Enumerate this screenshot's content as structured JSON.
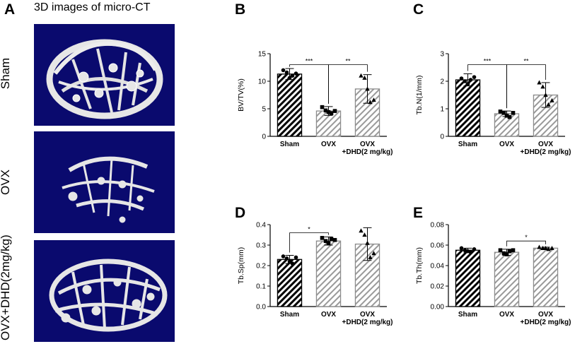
{
  "panel_a": {
    "letter": "A",
    "title": "3D images of micro-CT",
    "rows": [
      {
        "label": "Sham"
      },
      {
        "label": "OVX"
      },
      {
        "label": "OVX+DHD(2mg/kg)"
      }
    ]
  },
  "colors": {
    "ct_background": "#0a0a6e",
    "bone": "#e8e8e8",
    "bar_dark": "#000000",
    "bar_light": "#9a9a9a"
  },
  "chart_data": [
    {
      "letter": "B",
      "type": "bar",
      "categories": [
        "Sham",
        "OVX",
        "OVX\n+DHD(2 mg/kg)"
      ],
      "values": [
        11.3,
        4.6,
        8.6
      ],
      "errors": [
        1.0,
        0.8,
        2.6
      ],
      "points": [
        [
          12.0,
          11.6,
          10.6,
          11.0,
          11.4
        ],
        [
          5.3,
          4.7,
          4.4,
          4.2,
          4.6
        ],
        [
          11.0,
          10.6,
          8.6,
          6.2,
          6.6
        ]
      ],
      "markers": [
        "circle",
        "square",
        "triangle"
      ],
      "ylabel": "BV/TV(%)",
      "ylim": [
        0,
        15
      ],
      "yticks": [
        "0",
        "5",
        "10",
        "15"
      ],
      "ytick_values": [
        0,
        5,
        10,
        15
      ],
      "sig": [
        {
          "from": 0,
          "to": 1,
          "label": "***",
          "level": 13.0
        },
        {
          "from": 1,
          "to": 2,
          "label": "**",
          "level": 13.0
        }
      ]
    },
    {
      "letter": "C",
      "type": "bar",
      "categories": [
        "Sham",
        "OVX",
        "OVX\n+DHD(2 mg/kg)"
      ],
      "values": [
        2.05,
        0.82,
        1.5
      ],
      "errors": [
        0.22,
        0.1,
        0.45
      ],
      "points": [
        [
          2.1,
          2.0,
          1.9,
          2.05,
          2.15
        ],
        [
          0.9,
          0.85,
          0.75,
          0.7,
          0.85
        ],
        [
          1.95,
          1.8,
          1.5,
          1.15,
          1.3
        ]
      ],
      "markers": [
        "circle",
        "square",
        "triangle"
      ],
      "ylabel": "Tb.N(1/mm)",
      "ylim": [
        0,
        3
      ],
      "yticks": [
        "0",
        "1",
        "2",
        "3"
      ],
      "ytick_values": [
        0,
        1,
        2,
        3
      ],
      "sig": [
        {
          "from": 0,
          "to": 1,
          "label": "***",
          "level": 2.6
        },
        {
          "from": 1,
          "to": 2,
          "label": "**",
          "level": 2.6
        }
      ]
    },
    {
      "letter": "D",
      "type": "bar",
      "categories": [
        "Sham",
        "OVX",
        "OVX\n+DHD(2 mg/kg)"
      ],
      "values": [
        0.23,
        0.32,
        0.305
      ],
      "errors": [
        0.02,
        0.02,
        0.08
      ],
      "points": [
        [
          0.245,
          0.235,
          0.22,
          0.21,
          0.24
        ],
        [
          0.335,
          0.32,
          0.31,
          0.33,
          0.325
        ],
        [
          0.37,
          0.35,
          0.31,
          0.24,
          0.26
        ]
      ],
      "markers": [
        "circle",
        "square",
        "triangle"
      ],
      "ylabel": "Tb.Sp(mm)",
      "ylim": [
        0,
        0.4
      ],
      "yticks": [
        "0.0",
        "0.1",
        "0.2",
        "0.3",
        "0.4"
      ],
      "ytick_values": [
        0,
        0.1,
        0.2,
        0.3,
        0.4
      ],
      "sig": [
        {
          "from": 0,
          "to": 1,
          "label": "*",
          "level": 0.36
        }
      ]
    },
    {
      "letter": "E",
      "type": "bar",
      "categories": [
        "Sham",
        "OVX",
        "OVX\n+DHD(2 mg/kg)"
      ],
      "values": [
        0.055,
        0.053,
        0.057
      ],
      "errors": [
        0.002,
        0.003,
        0.001
      ],
      "points": [
        [
          0.057,
          0.055,
          0.054,
          0.053,
          0.056
        ],
        [
          0.055,
          0.052,
          0.051,
          0.054,
          0.055
        ],
        [
          0.058,
          0.057,
          0.057,
          0.056,
          0.057
        ]
      ],
      "markers": [
        "circle",
        "square",
        "triangle"
      ],
      "ylabel": "Tb.Th(mm)",
      "ylim": [
        0,
        0.08
      ],
      "yticks": [
        "0.00",
        "0.02",
        "0.04",
        "0.06",
        "0.08"
      ],
      "ytick_values": [
        0,
        0.02,
        0.04,
        0.06,
        0.08
      ],
      "sig": [
        {
          "from": 1,
          "to": 2,
          "label": "*",
          "level": 0.064
        }
      ]
    }
  ]
}
